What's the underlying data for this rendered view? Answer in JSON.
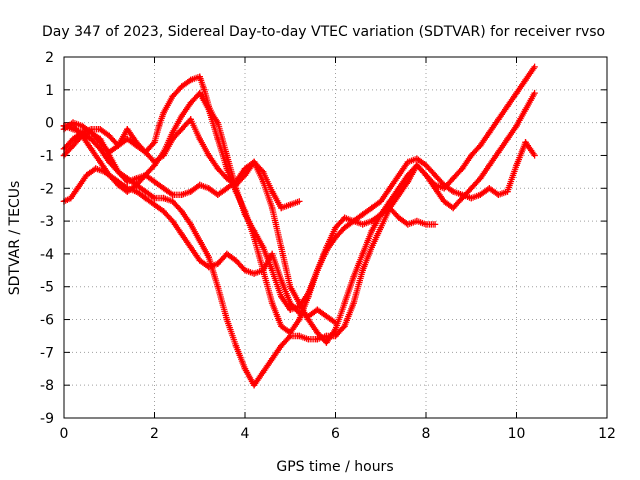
{
  "chart_data": {
    "type": "scatter",
    "title": "Day 347 of 2023, Sidereal Day-to-day VTEC variation (SDTVAR) for receiver rvso",
    "xlabel": "GPS time / hours",
    "ylabel": "SDTVAR / TECUs",
    "xlim": [
      0,
      12
    ],
    "ylim": [
      -9,
      2
    ],
    "xticks": [
      0,
      2,
      4,
      6,
      8,
      10,
      12
    ],
    "yticks": [
      -9,
      -8,
      -7,
      -6,
      -5,
      -4,
      -3,
      -2,
      -1,
      0,
      1,
      2
    ],
    "grid": true,
    "legend": "none",
    "marker": "plus",
    "color": "#ff0000",
    "series": [
      {
        "x": [
          0.0,
          0.15,
          0.3,
          0.5,
          0.7,
          0.9,
          1.0,
          1.2,
          1.4,
          1.6,
          1.8,
          2.0,
          2.2,
          2.4,
          2.6,
          2.8,
          3.0,
          3.2,
          3.4,
          3.6,
          3.8,
          4.0,
          4.2,
          4.4,
          4.6,
          4.8,
          5.0,
          5.2,
          5.4,
          5.6,
          5.8,
          6.0
        ],
        "y": [
          -2.4,
          -2.3,
          -2.0,
          -1.6,
          -1.4,
          -1.5,
          -1.6,
          -1.8,
          -2.0,
          -2.1,
          -2.3,
          -2.5,
          -2.7,
          -3.0,
          -3.4,
          -3.8,
          -4.2,
          -4.4,
          -4.3,
          -4.0,
          -4.2,
          -4.5,
          -4.6,
          -4.5,
          -4.0,
          -4.8,
          -5.5,
          -5.8,
          -5.9,
          -5.7,
          -5.9,
          -6.1
        ]
      },
      {
        "x": [
          0.0,
          0.2,
          0.4,
          0.6,
          0.8,
          1.0,
          1.2,
          1.4,
          1.6,
          1.8,
          2.0,
          2.2,
          2.4,
          2.6,
          2.8,
          3.0,
          3.2,
          3.4,
          3.6,
          3.8,
          4.0,
          4.2,
          4.4,
          4.6,
          4.8,
          5.0,
          5.2,
          5.4,
          5.6,
          5.8,
          6.0,
          6.2,
          6.4,
          6.6,
          6.8,
          7.0,
          7.2,
          7.4,
          7.6,
          7.8,
          8.0,
          8.2,
          8.4,
          8.6,
          8.8,
          9.0,
          9.2,
          9.4,
          9.6,
          9.8,
          10.0,
          10.2,
          10.4
        ],
        "y": [
          -0.1,
          -0.2,
          -0.3,
          -0.5,
          -0.8,
          -1.2,
          -1.5,
          -1.7,
          -1.9,
          -2.1,
          -2.3,
          -2.3,
          -2.4,
          -2.7,
          -3.1,
          -3.6,
          -4.1,
          -5.0,
          -6.0,
          -6.8,
          -7.5,
          -8.0,
          -7.6,
          -7.2,
          -6.8,
          -6.5,
          -6.5,
          -6.6,
          -6.6,
          -6.5,
          -6.5,
          -6.2,
          -5.5,
          -4.5,
          -3.8,
          -3.2,
          -2.6,
          -2.2,
          -1.8,
          -1.3,
          -1.6,
          -1.9,
          -2.0,
          -1.7,
          -1.4,
          -1.0,
          -0.7,
          -0.3,
          0.1,
          0.5,
          0.9,
          1.3,
          1.7
        ]
      },
      {
        "x": [
          0.0,
          0.2,
          0.4,
          0.6,
          0.8,
          1.0,
          1.2,
          1.4,
          1.6,
          1.8,
          2.0,
          2.2,
          2.4,
          2.6,
          2.8,
          3.0,
          3.2,
          3.4,
          3.6,
          3.8,
          4.0,
          4.2,
          4.4,
          4.6,
          4.8,
          5.0,
          5.2,
          5.4,
          5.6,
          5.8,
          6.0,
          6.2,
          6.4,
          6.6,
          6.8,
          7.0,
          7.2,
          7.4,
          7.6,
          7.8,
          8.0,
          8.2,
          8.4,
          8.6,
          8.8,
          9.0,
          9.2,
          9.4,
          9.6,
          9.8,
          10.0,
          10.2,
          10.4
        ],
        "y": [
          -1.0,
          -0.7,
          -0.4,
          -0.3,
          -0.5,
          -1.0,
          -1.5,
          -1.8,
          -1.7,
          -1.6,
          -1.8,
          -2.0,
          -2.2,
          -2.2,
          -2.1,
          -1.9,
          -2.0,
          -2.2,
          -2.0,
          -1.8,
          -1.4,
          -1.2,
          -1.8,
          -2.6,
          -3.8,
          -5.0,
          -5.5,
          -6.0,
          -6.4,
          -6.7,
          -6.3,
          -5.5,
          -4.7,
          -4.0,
          -3.3,
          -2.8,
          -2.4,
          -2.0,
          -1.6,
          -1.3,
          -1.6,
          -2.0,
          -2.4,
          -2.6,
          -2.3,
          -2.0,
          -1.7,
          -1.3,
          -0.9,
          -0.5,
          -0.1,
          0.4,
          0.9
        ]
      },
      {
        "x": [
          0.0,
          0.2,
          0.4,
          0.6,
          0.8,
          1.0,
          1.2,
          1.4,
          1.6,
          1.8,
          2.0,
          2.1,
          2.2,
          2.4,
          2.6,
          2.8,
          3.0,
          3.1,
          3.2,
          3.3,
          3.4,
          3.6,
          3.8,
          4.0,
          4.2,
          4.4,
          4.6,
          4.8,
          5.0,
          5.2,
          5.4,
          5.6,
          5.8,
          6.0,
          6.2,
          6.4,
          6.6,
          6.8,
          7.0,
          7.2,
          7.4,
          7.6,
          7.8,
          8.0,
          8.2,
          8.4,
          8.6,
          8.8,
          9.0,
          9.2,
          9.4,
          9.6,
          9.8,
          10.0,
          10.2,
          10.4
        ],
        "y": [
          -0.2,
          0.0,
          -0.1,
          -0.3,
          -0.6,
          -0.9,
          -0.7,
          -0.5,
          -0.7,
          -0.9,
          -0.6,
          -0.1,
          0.3,
          0.8,
          1.1,
          1.3,
          1.4,
          1.0,
          0.5,
          0.2,
          0.0,
          -1.0,
          -2.0,
          -2.8,
          -3.3,
          -3.8,
          -4.5,
          -5.3,
          -5.7,
          -5.6,
          -5.2,
          -4.5,
          -3.8,
          -3.2,
          -2.9,
          -3.0,
          -2.8,
          -2.6,
          -2.4,
          -2.0,
          -1.6,
          -1.2,
          -1.1,
          -1.3,
          -1.6,
          -1.9,
          -2.1,
          -2.2,
          -2.3,
          -2.2,
          -2.0,
          -2.2,
          -2.1,
          -1.3,
          -0.6,
          -1.0
        ]
      },
      {
        "x": [
          0.0,
          0.2,
          0.4,
          0.6,
          0.8,
          1.0,
          1.2,
          1.4,
          1.6,
          1.8,
          2.0,
          2.2,
          2.4,
          2.6,
          2.8,
          3.0,
          3.2,
          3.4,
          3.6,
          3.8,
          4.0,
          4.2,
          4.4,
          4.6,
          4.8,
          5.0,
          5.2
        ],
        "y": [
          -0.8,
          -0.5,
          -0.3,
          -0.2,
          -0.2,
          -0.4,
          -0.7,
          -0.2,
          -0.6,
          -0.9,
          -1.2,
          -1.0,
          -0.5,
          -0.2,
          0.1,
          -0.5,
          -1.0,
          -1.4,
          -1.7,
          -1.9,
          -1.6,
          -1.2,
          -1.5,
          -2.1,
          -2.6,
          -2.5,
          -2.4
        ]
      },
      {
        "x": [
          0.0,
          0.2,
          0.4,
          0.6,
          0.8,
          1.0,
          1.2,
          1.4,
          1.6,
          1.8,
          2.0,
          2.2,
          2.4,
          2.6,
          2.8,
          3.0,
          3.2,
          3.4,
          3.6,
          3.8,
          4.0,
          4.2,
          4.4,
          4.6,
          4.8,
          5.0,
          5.2,
          5.4,
          5.6,
          5.8,
          6.0,
          6.2,
          6.4,
          6.6,
          6.8,
          7.0,
          7.2,
          7.4,
          7.6,
          7.8,
          8.0,
          8.2
        ],
        "y": [
          -0.1,
          -0.1,
          -0.4,
          -0.8,
          -1.2,
          -1.6,
          -1.9,
          -2.1,
          -1.9,
          -1.6,
          -1.3,
          -0.9,
          -0.3,
          0.2,
          0.6,
          0.9,
          0.4,
          -0.5,
          -1.4,
          -2.1,
          -2.7,
          -3.5,
          -4.5,
          -5.5,
          -6.2,
          -6.4,
          -6.0,
          -5.3,
          -4.5,
          -3.9,
          -3.5,
          -3.2,
          -3.0,
          -3.1,
          -3.0,
          -2.8,
          -2.6,
          -2.9,
          -3.1,
          -3.0,
          -3.1,
          -3.1
        ]
      }
    ]
  }
}
